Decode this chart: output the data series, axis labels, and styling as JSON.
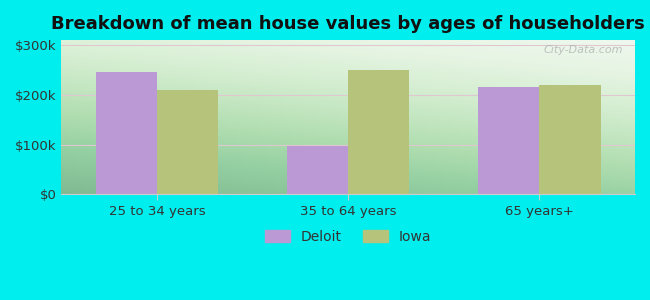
{
  "title": "Breakdown of mean house values by ages of householders",
  "categories": [
    "25 to 34 years",
    "35 to 64 years",
    "65 years+"
  ],
  "deloit_values": [
    245000,
    97000,
    215000
  ],
  "iowa_values": [
    210000,
    250000,
    220000
  ],
  "deloit_color": "#bb99d4",
  "iowa_color": "#b5c47a",
  "background_outer": "#00eeee",
  "background_inner_top": "#f5faf5",
  "background_inner_bottom": "#d0edd0",
  "yticks": [
    0,
    100000,
    200000,
    300000
  ],
  "ytick_labels": [
    "$0",
    "$100k",
    "$200k",
    "$300k"
  ],
  "ylim": [
    0,
    310000
  ],
  "legend_labels": [
    "Deloit",
    "Iowa"
  ],
  "bar_width": 0.32,
  "title_fontsize": 13,
  "watermark": "City-Data.com"
}
